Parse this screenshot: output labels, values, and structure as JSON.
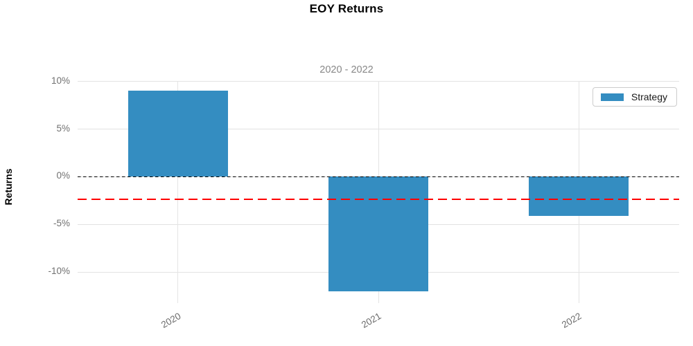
{
  "chart_data": {
    "type": "bar",
    "title": "EOY Returns",
    "subtitle": "2020 - 2022",
    "ylabel": "Returns",
    "xlabel": "",
    "categories": [
      "2020",
      "2021",
      "2022"
    ],
    "series": [
      {
        "name": "Strategy",
        "color": "#348dc1",
        "values": [
          9.0,
          -12.0,
          -4.1
        ]
      }
    ],
    "yticks": [
      10,
      5,
      0,
      -5,
      -10
    ],
    "ytick_labels": [
      "10%",
      "5%",
      "0%",
      "-5%",
      "-10%"
    ],
    "ylim": [
      -13.05,
      10.05
    ],
    "grid": true,
    "reference_lines": {
      "zero_line": {
        "value": 0,
        "color": "#000000",
        "style": "dashed"
      },
      "mean_line": {
        "value": -2.37,
        "color": "#ff0000",
        "style": "dashed"
      }
    },
    "legend": {
      "label": "Strategy",
      "position": "upper-right"
    }
  }
}
